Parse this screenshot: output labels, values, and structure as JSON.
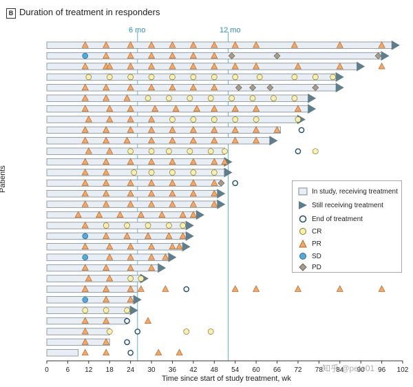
{
  "panel_label": "B",
  "panel_title": "Duration of treatment in responders",
  "watermark": "知乎 @pete01",
  "chart_data": {
    "type": "swimmer",
    "title": "Duration of treatment in responders",
    "xlabel": "Time since start of study treatment, wk",
    "ylabel": "Patients",
    "xlim": [
      0,
      102
    ],
    "xticks": [
      0,
      6,
      12,
      18,
      24,
      30,
      36,
      42,
      48,
      54,
      60,
      66,
      72,
      78,
      84,
      90,
      96,
      102
    ],
    "reference_lines": [
      {
        "x": 26,
        "label": "6 mo"
      },
      {
        "x": 52,
        "label": "12 mo"
      }
    ],
    "legend": [
      {
        "key": "bar",
        "label": "In study, receiving treatment"
      },
      {
        "key": "arrow",
        "label": "Still receiving treatment"
      },
      {
        "key": "eot",
        "label": "End of treatment"
      },
      {
        "key": "CR",
        "label": "CR"
      },
      {
        "key": "PR",
        "label": "PR"
      },
      {
        "key": "SD",
        "label": "SD"
      },
      {
        "key": "PD",
        "label": "PD"
      }
    ],
    "colors": {
      "bar_fill": "#e8eef3",
      "bar_stroke": "#7b8a96",
      "arrow": "#607d8b",
      "CR": "#f7efb3",
      "PR": "#f1a86a",
      "SD": "#5aa7d6",
      "PD": "#a79d8e",
      "ref_line": "#5fb0dc"
    },
    "patients": [
      {
        "bar_end": 99,
        "arrow": true,
        "events": [
          [
            11,
            "PR"
          ],
          [
            17,
            "PR"
          ],
          [
            24,
            "PR"
          ],
          [
            30,
            "PR"
          ],
          [
            36,
            "PR"
          ],
          [
            42,
            "PR"
          ],
          [
            48,
            "PR"
          ],
          [
            54,
            "PR"
          ],
          [
            60,
            "PR"
          ],
          [
            71,
            "PR"
          ],
          [
            84,
            "PR"
          ],
          [
            96,
            "PR"
          ]
        ]
      },
      {
        "bar_end": 96,
        "arrow": true,
        "events": [
          [
            11,
            "SD"
          ],
          [
            17,
            "PR"
          ],
          [
            24,
            "PR"
          ],
          [
            30,
            "PR"
          ],
          [
            36,
            "PR"
          ],
          [
            42,
            "PR"
          ],
          [
            48,
            "PR"
          ],
          [
            53,
            "PD"
          ],
          [
            66,
            "PD"
          ],
          [
            95,
            "PD"
          ]
        ]
      },
      {
        "bar_end": 89,
        "arrow": true,
        "events": [
          [
            11,
            "PR"
          ],
          [
            17,
            "PR"
          ],
          [
            18,
            "PR"
          ],
          [
            24,
            "PR"
          ],
          [
            30,
            "PR"
          ],
          [
            36,
            "PR"
          ],
          [
            42,
            "PR"
          ],
          [
            48,
            "PR"
          ],
          [
            54,
            "PR"
          ],
          [
            60,
            "PR"
          ],
          [
            72,
            "PR"
          ],
          [
            84,
            "PR"
          ],
          [
            96,
            "PR"
          ]
        ]
      },
      {
        "bar_end": 83,
        "arrow": true,
        "events": [
          [
            12,
            "CR"
          ],
          [
            18,
            "CR"
          ],
          [
            24,
            "CR"
          ],
          [
            30,
            "CR"
          ],
          [
            36,
            "CR"
          ],
          [
            42,
            "CR"
          ],
          [
            48,
            "CR"
          ],
          [
            54,
            "CR"
          ],
          [
            61,
            "CR"
          ],
          [
            71,
            "CR"
          ],
          [
            77,
            "CR"
          ],
          [
            82,
            "CR"
          ]
        ]
      },
      {
        "bar_end": 83,
        "arrow": true,
        "events": [
          [
            11,
            "PR"
          ],
          [
            17,
            "PR"
          ],
          [
            24,
            "PR"
          ],
          [
            30,
            "PR"
          ],
          [
            36,
            "PR"
          ],
          [
            42,
            "PR"
          ],
          [
            48,
            "PR"
          ],
          [
            55,
            "PD"
          ],
          [
            59,
            "PD"
          ],
          [
            64,
            "PD"
          ],
          [
            77,
            "PD"
          ]
        ]
      },
      {
        "bar_end": 75,
        "arrow": true,
        "events": [
          [
            11,
            "PR"
          ],
          [
            17,
            "PR"
          ],
          [
            23,
            "PR"
          ],
          [
            29,
            "CR"
          ],
          [
            35,
            "CR"
          ],
          [
            41,
            "CR"
          ],
          [
            47,
            "CR"
          ],
          [
            53,
            "CR"
          ],
          [
            59,
            "CR"
          ],
          [
            65,
            "CR"
          ],
          [
            71,
            "CR"
          ]
        ]
      },
      {
        "bar_end": 75,
        "arrow": true,
        "events": [
          [
            11,
            "PR"
          ],
          [
            18,
            "PR"
          ],
          [
            24,
            "PR"
          ],
          [
            31,
            "PR"
          ],
          [
            37,
            "PR"
          ],
          [
            43,
            "PR"
          ],
          [
            48,
            "PR"
          ],
          [
            54,
            "PR"
          ],
          [
            60,
            "PR"
          ],
          [
            72,
            "PR"
          ]
        ]
      },
      {
        "bar_end": 72,
        "arrow": true,
        "events": [
          [
            12,
            "PR"
          ],
          [
            18,
            "PR"
          ],
          [
            24,
            "PR"
          ],
          [
            30,
            "PR"
          ],
          [
            36,
            "CR"
          ],
          [
            42,
            "CR"
          ],
          [
            48,
            "CR"
          ],
          [
            54,
            "CR"
          ],
          [
            60,
            "CR"
          ],
          [
            72,
            "CR"
          ]
        ]
      },
      {
        "bar_end": 67,
        "arrow": false,
        "events": [
          [
            11,
            "PR"
          ],
          [
            17,
            "PR"
          ],
          [
            24,
            "PR"
          ],
          [
            30,
            "PR"
          ],
          [
            36,
            "PR"
          ],
          [
            42,
            "PR"
          ],
          [
            48,
            "PR"
          ],
          [
            54,
            "PR"
          ],
          [
            60,
            "PR"
          ],
          [
            66,
            "PR"
          ],
          [
            73,
            "EOT"
          ]
        ]
      },
      {
        "bar_end": 64,
        "arrow": true,
        "events": [
          [
            11,
            "PR"
          ],
          [
            17,
            "PR"
          ],
          [
            23,
            "PR"
          ],
          [
            30,
            "PR"
          ],
          [
            36,
            "PR"
          ],
          [
            42,
            "PR"
          ],
          [
            48,
            "PR"
          ],
          [
            54,
            "PR"
          ],
          [
            60,
            "PR"
          ]
        ]
      },
      {
        "bar_end": 51,
        "arrow": false,
        "events": [
          [
            12,
            "PR"
          ],
          [
            18,
            "PR"
          ],
          [
            24,
            "CR"
          ],
          [
            30,
            "CR"
          ],
          [
            35,
            "CR"
          ],
          [
            41,
            "CR"
          ],
          [
            47,
            "CR"
          ],
          [
            51,
            "CR"
          ],
          [
            72,
            "EOT"
          ],
          [
            77,
            "CR"
          ]
        ]
      },
      {
        "bar_end": 51,
        "arrow": true,
        "events": [
          [
            11,
            "PR"
          ],
          [
            17,
            "PR"
          ],
          [
            24,
            "PR"
          ],
          [
            30,
            "PR"
          ],
          [
            36,
            "PR"
          ],
          [
            42,
            "PR"
          ],
          [
            48,
            "PR"
          ],
          [
            51,
            "PR"
          ]
        ]
      },
      {
        "bar_end": 51,
        "arrow": true,
        "events": [
          [
            11,
            "PR"
          ],
          [
            17,
            "PR"
          ],
          [
            25,
            "CR"
          ],
          [
            30,
            "CR"
          ],
          [
            36,
            "CR"
          ],
          [
            42,
            "CR"
          ],
          [
            48,
            "CR"
          ]
        ]
      },
      {
        "bar_end": 50,
        "arrow": false,
        "events": [
          [
            11,
            "PR"
          ],
          [
            17,
            "PR"
          ],
          [
            24,
            "PR"
          ],
          [
            30,
            "PR"
          ],
          [
            36,
            "PR"
          ],
          [
            42,
            "PR"
          ],
          [
            48,
            "PR"
          ],
          [
            50,
            "PD"
          ],
          [
            54,
            "EOT"
          ]
        ]
      },
      {
        "bar_end": 49,
        "arrow": true,
        "events": [
          [
            11,
            "PR"
          ],
          [
            17,
            "PR"
          ],
          [
            24,
            "PR"
          ],
          [
            30,
            "PR"
          ],
          [
            36,
            "PR"
          ],
          [
            42,
            "PR"
          ],
          [
            48,
            "PR"
          ]
        ]
      },
      {
        "bar_end": 49,
        "arrow": true,
        "events": [
          [
            11,
            "PR"
          ],
          [
            17,
            "PR"
          ],
          [
            24,
            "PR"
          ],
          [
            30,
            "PR"
          ],
          [
            36,
            "PR"
          ],
          [
            42,
            "PR"
          ],
          [
            48,
            "PR"
          ]
        ]
      },
      {
        "bar_end": 43,
        "arrow": true,
        "events": [
          [
            9,
            "PR"
          ],
          [
            15,
            "PR"
          ],
          [
            21,
            "PR"
          ],
          [
            27,
            "PR"
          ],
          [
            33,
            "PR"
          ],
          [
            39,
            "PR"
          ],
          [
            42,
            "PR"
          ]
        ]
      },
      {
        "bar_end": 40,
        "arrow": true,
        "events": [
          [
            11,
            "PR"
          ],
          [
            17,
            "CR"
          ],
          [
            23,
            "CR"
          ],
          [
            29,
            "CR"
          ],
          [
            35,
            "CR"
          ],
          [
            39,
            "CR"
          ]
        ]
      },
      {
        "bar_end": 40,
        "arrow": true,
        "events": [
          [
            11,
            "SD"
          ],
          [
            17,
            "PR"
          ],
          [
            23,
            "PR"
          ],
          [
            29,
            "PR"
          ],
          [
            35,
            "PR"
          ],
          [
            39,
            "PR"
          ]
        ]
      },
      {
        "bar_end": 39,
        "arrow": true,
        "events": [
          [
            11,
            "PR"
          ],
          [
            18,
            "PR"
          ],
          [
            24,
            "PR"
          ],
          [
            30,
            "PR"
          ],
          [
            36,
            "PR"
          ],
          [
            38,
            "PR"
          ]
        ]
      },
      {
        "bar_end": 35,
        "arrow": true,
        "events": [
          [
            11,
            "SD"
          ],
          [
            18,
            "PR"
          ],
          [
            24,
            "PR"
          ],
          [
            30,
            "PR"
          ],
          [
            34,
            "PR"
          ]
        ]
      },
      {
        "bar_end": 32,
        "arrow": true,
        "events": [
          [
            11,
            "PR"
          ],
          [
            17,
            "PR"
          ],
          [
            24,
            "PR"
          ],
          [
            30,
            "PR"
          ]
        ]
      },
      {
        "bar_end": 27,
        "arrow": true,
        "events": [
          [
            12,
            "PR"
          ],
          [
            18,
            "PR"
          ],
          [
            24,
            "CR"
          ],
          [
            27,
            "CR"
          ]
        ]
      },
      {
        "bar_end": 26,
        "arrow": false,
        "events": [
          [
            11,
            "PR"
          ],
          [
            17,
            "PR"
          ],
          [
            24,
            "PR"
          ],
          [
            27,
            "PR"
          ],
          [
            34,
            "PR"
          ],
          [
            40,
            "EOT"
          ],
          [
            54,
            "PR"
          ],
          [
            60,
            "PR"
          ],
          [
            72,
            "PR"
          ],
          [
            84,
            "PR"
          ],
          [
            96,
            "PR"
          ]
        ]
      },
      {
        "bar_end": 25,
        "arrow": true,
        "events": [
          [
            11,
            "SD"
          ],
          [
            17,
            "PR"
          ],
          [
            24,
            "PR"
          ]
        ]
      },
      {
        "bar_end": 24,
        "arrow": true,
        "events": [
          [
            11,
            "CR"
          ],
          [
            17,
            "CR"
          ],
          [
            23,
            "CR"
          ]
        ]
      },
      {
        "bar_end": 23,
        "arrow": false,
        "events": [
          [
            11,
            "PR"
          ],
          [
            17,
            "PR"
          ],
          [
            23,
            "EOT"
          ],
          [
            29,
            "PR"
          ]
        ]
      },
      {
        "bar_end": 18,
        "arrow": false,
        "events": [
          [
            11,
            "PR"
          ],
          [
            18,
            "CR"
          ],
          [
            26,
            "EOT"
          ],
          [
            40,
            "CR"
          ],
          [
            47,
            "CR"
          ]
        ]
      },
      {
        "bar_end": 18,
        "arrow": false,
        "events": [
          [
            11,
            "PR"
          ],
          [
            17,
            "PR"
          ],
          [
            23,
            "EOT"
          ]
        ]
      },
      {
        "bar_end": 9,
        "arrow": false,
        "events": [
          [
            11,
            "PR"
          ],
          [
            17,
            "PR"
          ],
          [
            24,
            "EOT"
          ],
          [
            32,
            "PR"
          ],
          [
            38,
            "PR"
          ]
        ]
      }
    ]
  }
}
